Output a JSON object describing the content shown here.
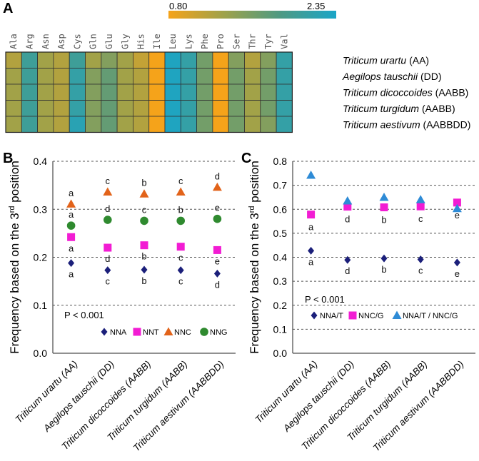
{
  "chart_data": [
    {
      "panel": "A",
      "type": "heatmap",
      "colorbar": {
        "min_label": "0.80",
        "max_label": "2.35",
        "min": 0.8,
        "max": 2.35,
        "colors": [
          "#F5A31A",
          "#9FA24A",
          "#4F9A82",
          "#1AA5C7"
        ]
      },
      "columns": [
        "Ala",
        "Arg",
        "Asn",
        "Asp",
        "Cys",
        "Gln",
        "Glu",
        "Gly",
        "His",
        "Ile",
        "Leu",
        "Lys",
        "Phe",
        "Pro",
        "Ser",
        "Thr",
        "Tyr",
        "Val"
      ],
      "rows": [
        {
          "name": "Triticum urartu",
          "genome": "(AA)"
        },
        {
          "name": "Aegilops tauschii",
          "genome": "(DD)"
        },
        {
          "name": "Triticum dicoccoides",
          "genome": "(AABB)"
        },
        {
          "name": "Triticum turgidum",
          "genome": "(AABB)"
        },
        {
          "name": "Triticum aestivum",
          "genome": "(AABBDD)"
        }
      ],
      "values": [
        [
          1.2,
          2.0,
          1.3,
          1.2,
          2.0,
          1.3,
          1.5,
          1.3,
          1.1,
          0.8,
          2.3,
          2.1,
          1.6,
          0.8,
          1.5,
          1.2,
          1.5,
          2.1
        ],
        [
          1.3,
          2.0,
          1.3,
          1.2,
          2.1,
          1.5,
          1.7,
          1.3,
          1.2,
          0.8,
          2.3,
          2.1,
          1.6,
          0.8,
          1.6,
          1.3,
          1.6,
          2.1
        ],
        [
          1.3,
          2.0,
          1.3,
          1.2,
          2.1,
          1.5,
          1.7,
          1.3,
          1.2,
          0.8,
          2.3,
          2.1,
          1.6,
          0.8,
          1.6,
          1.3,
          1.6,
          2.1
        ],
        [
          1.3,
          2.0,
          1.3,
          1.2,
          2.1,
          1.5,
          1.7,
          1.3,
          1.2,
          0.8,
          2.3,
          2.1,
          1.6,
          0.8,
          1.6,
          1.3,
          1.6,
          2.1
        ],
        [
          1.3,
          2.0,
          1.3,
          1.2,
          2.2,
          1.5,
          1.7,
          1.3,
          1.2,
          0.8,
          2.3,
          2.1,
          1.6,
          0.8,
          1.6,
          1.3,
          1.5,
          2.1
        ]
      ]
    },
    {
      "panel": "B",
      "type": "scatter",
      "ylabel_pre": "Frequency based on the 3",
      "ylabel_sup": "rd",
      "ylabel_post": " position",
      "ylim": [
        0,
        0.4
      ],
      "yticks": [
        "0.0",
        "0.1",
        "0.2",
        "0.3",
        "0.4"
      ],
      "ytick_values": [
        0,
        0.1,
        0.2,
        0.3,
        0.4
      ],
      "grid": true,
      "note": "P < 0.001",
      "legend_position": "bottom-center",
      "categories": [
        {
          "name": "Triticum urartu",
          "genome": "(AA)"
        },
        {
          "name": "Aegilops tauschii",
          "genome": "(DD)"
        },
        {
          "name": "Triticum dicoccoides",
          "genome": "(AABB)"
        },
        {
          "name": "Triticum turgidum",
          "genome": "(AABB)"
        },
        {
          "name": "Triticum aestivum",
          "genome": "(AABBDD)"
        }
      ],
      "series": [
        {
          "name": "NNA",
          "marker": "diamond",
          "color": "#1B1F7A",
          "values": [
            0.188,
            0.173,
            0.174,
            0.173,
            0.166
          ],
          "letters": [
            "a",
            "c",
            "b",
            "c",
            "d"
          ],
          "letter_pos": "below"
        },
        {
          "name": "NNT",
          "marker": "square",
          "color": "#F21CD3",
          "values": [
            0.242,
            0.22,
            0.225,
            0.222,
            0.215
          ],
          "letters": [
            "a",
            "d",
            "b",
            "c",
            "e"
          ],
          "letter_pos": "below"
        },
        {
          "name": "NNC",
          "marker": "triangle",
          "color": "#E2631A",
          "values": [
            0.311,
            0.336,
            0.332,
            0.336,
            0.346
          ],
          "letters": [
            "a",
            "c",
            "b",
            "c",
            "d"
          ],
          "letter_pos": "above"
        },
        {
          "name": "NNG",
          "marker": "circle",
          "color": "#2F8A2F",
          "values": [
            0.266,
            0.278,
            0.276,
            0.276,
            0.28
          ],
          "letters": [
            "a",
            "d",
            "c",
            "b",
            "e"
          ],
          "letter_pos": "above"
        }
      ]
    },
    {
      "panel": "C",
      "type": "scatter",
      "ylabel_pre": "Frequency based on the 3",
      "ylabel_sup": "rd",
      "ylabel_post": " position",
      "ylim": [
        0,
        0.8
      ],
      "yticks": [
        "0.0",
        "0.1",
        "0.2",
        "0.3",
        "0.4",
        "0.5",
        "0.6",
        "0.7",
        "0.8"
      ],
      "ytick_values": [
        0,
        0.1,
        0.2,
        0.3,
        0.4,
        0.5,
        0.6,
        0.7,
        0.8
      ],
      "grid": true,
      "note": "P < 0.001",
      "legend_position": "bottom-center",
      "categories": [
        {
          "name": "Triticum urartu",
          "genome": "(AA)"
        },
        {
          "name": "Aegilops tauschii",
          "genome": "(DD)"
        },
        {
          "name": "Triticum dicoccoides",
          "genome": "(AABB)"
        },
        {
          "name": "Triticum turgidum",
          "genome": "(AABB)"
        },
        {
          "name": "Triticum aestivum",
          "genome": "(AABBDD)"
        }
      ],
      "series": [
        {
          "name": "NNA/T",
          "marker": "diamond",
          "color": "#1B1F7A",
          "values": [
            0.427,
            0.389,
            0.395,
            0.391,
            0.378
          ],
          "letters": [
            "a",
            "d",
            "b",
            "c",
            "e"
          ],
          "letter_pos": "below"
        },
        {
          "name": "NNC/G",
          "marker": "square",
          "color": "#F21CD3",
          "values": [
            0.578,
            0.611,
            0.608,
            0.612,
            0.628
          ],
          "letters": [
            "a",
            "d",
            "b",
            "c",
            "e"
          ],
          "letter_pos": "below_low"
        },
        {
          "name": "NNA/T / NNC/G",
          "marker": "triangle",
          "color": "#2E8BD6",
          "values": [
            0.742,
            0.635,
            0.65,
            0.64,
            0.603
          ],
          "letters": [
            "",
            "",
            "",
            "",
            ""
          ],
          "letter_pos": "none"
        }
      ]
    }
  ],
  "labels": {
    "panel_a": "A",
    "panel_b": "B",
    "panel_c": "C"
  }
}
